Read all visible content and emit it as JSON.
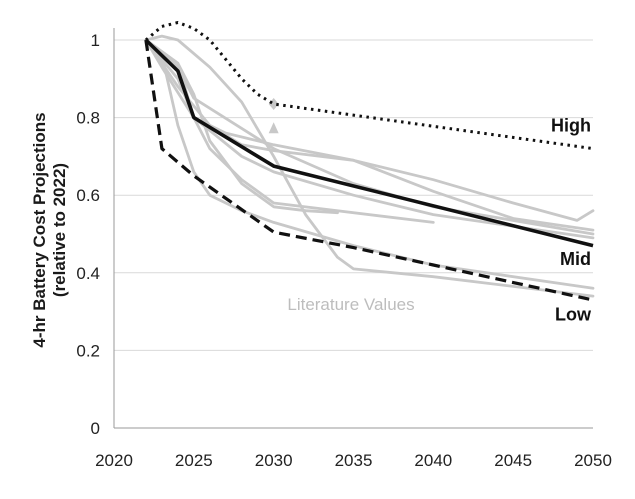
{
  "chart_data": {
    "type": "line",
    "ylabel": [
      "4-hr Battery Cost Projections",
      "(relative to 2022)"
    ],
    "xlabel": "",
    "xlim": [
      2020,
      2050
    ],
    "ylim": [
      0,
      1
    ],
    "x_ticks": [
      "2020",
      "2025",
      "2030",
      "2035",
      "2040",
      "2045",
      "2050"
    ],
    "y_ticks": [
      "0",
      "0.2",
      "0.4",
      "0.6",
      "0.8",
      "1"
    ],
    "grid": "horizontal",
    "series": [
      {
        "name": "High",
        "style": "dotted",
        "color": "#111111",
        "x": [
          2022,
          2023,
          2024,
          2025,
          2026,
          2027,
          2028,
          2029,
          2030,
          2050
        ],
        "y": [
          1.0,
          1.035,
          1.045,
          1.03,
          1.0,
          0.95,
          0.9,
          0.86,
          0.835,
          0.72
        ]
      },
      {
        "name": "Mid",
        "style": "solid",
        "color": "#111111",
        "x": [
          2022,
          2024,
          2025,
          2030,
          2050
        ],
        "y": [
          1.0,
          0.92,
          0.8,
          0.675,
          0.47
        ]
      },
      {
        "name": "Low",
        "style": "dashed",
        "color": "#111111",
        "x": [
          2022,
          2023,
          2025,
          2030,
          2035,
          2040,
          2050
        ],
        "y": [
          1.0,
          0.72,
          0.65,
          0.505,
          0.465,
          0.42,
          0.33
        ]
      }
    ],
    "literature": {
      "label": "Literature Values",
      "color": "#c8c8c8",
      "lines": [
        {
          "x": [
            2022,
            2024,
            2025,
            2027,
            2030,
            2035,
            2040,
            2045,
            2049,
            2050
          ],
          "y": [
            1.0,
            0.9,
            0.8,
            0.76,
            0.73,
            0.69,
            0.64,
            0.58,
            0.535,
            0.56
          ]
        },
        {
          "x": [
            2022,
            2024,
            2025,
            2030,
            2035,
            2040,
            2050
          ],
          "y": [
            1.0,
            0.93,
            0.85,
            0.72,
            0.63,
            0.57,
            0.5
          ]
        },
        {
          "x": [
            2022,
            2023,
            2025,
            2028,
            2030,
            2035,
            2040,
            2050
          ],
          "y": [
            1.0,
            0.93,
            0.8,
            0.7,
            0.66,
            0.6,
            0.55,
            0.49
          ]
        },
        {
          "x": [
            2022,
            2023,
            2024,
            2026,
            2028,
            2030,
            2032,
            2034,
            2035,
            2040,
            2050
          ],
          "y": [
            1.0,
            1.01,
            1.0,
            0.93,
            0.84,
            0.7,
            0.55,
            0.44,
            0.41,
            0.39,
            0.34
          ]
        },
        {
          "x": [
            2022,
            2023,
            2024,
            2025,
            2026,
            2028,
            2030,
            2035,
            2040,
            2050
          ],
          "y": [
            1.0,
            0.96,
            0.78,
            0.66,
            0.6,
            0.56,
            0.53,
            0.47,
            0.42,
            0.36
          ]
        },
        {
          "x": [
            2022,
            2024,
            2025,
            2026,
            2028,
            2030,
            2040
          ],
          "y": [
            1.0,
            0.94,
            0.8,
            0.72,
            0.64,
            0.58,
            0.53
          ]
        },
        {
          "x": [
            2022,
            2024,
            2026,
            2028,
            2030,
            2035,
            2040,
            2045,
            2050
          ],
          "y": [
            1.0,
            0.88,
            0.78,
            0.73,
            0.715,
            0.69,
            0.61,
            0.54,
            0.51
          ]
        },
        {
          "x": [
            2022,
            2024,
            2025,
            2026,
            2028,
            2030,
            2032,
            2034
          ],
          "y": [
            1.0,
            0.94,
            0.86,
            0.74,
            0.63,
            0.57,
            0.56,
            0.555
          ]
        }
      ],
      "markers": [
        {
          "shape": "diamond",
          "x": 2030,
          "y": 0.835
        },
        {
          "shape": "triangle",
          "x": 2030,
          "y": 0.77
        }
      ]
    }
  }
}
